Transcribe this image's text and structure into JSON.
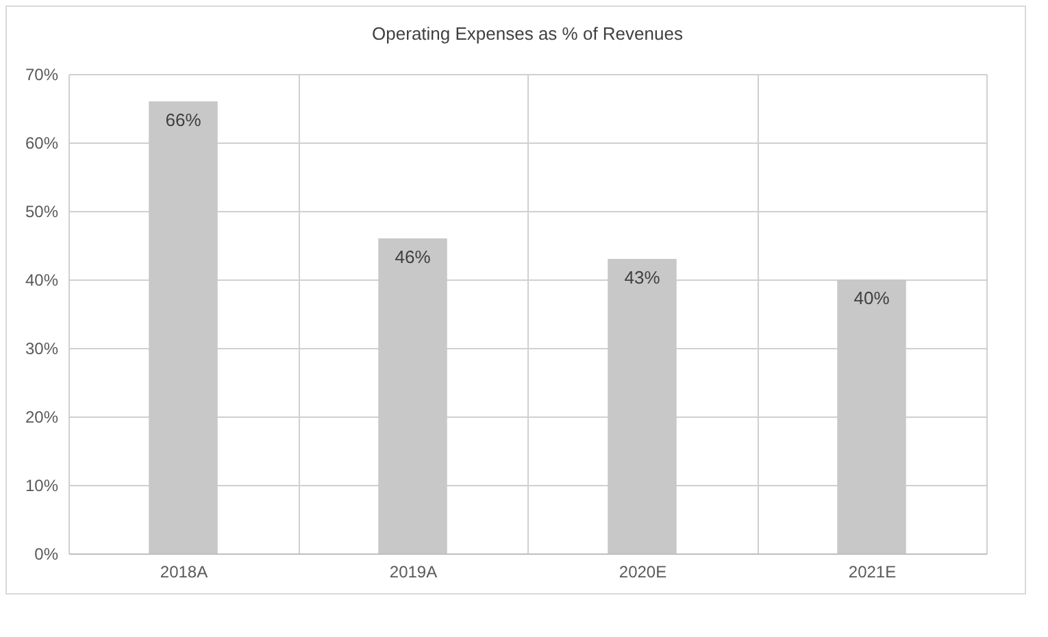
{
  "chart_data": {
    "type": "bar",
    "title": "Operating Expenses as % of Revenues",
    "categories": [
      "2018A",
      "2019A",
      "2020E",
      "2021E"
    ],
    "values": [
      66,
      46,
      43,
      40
    ],
    "value_labels": [
      "66%",
      "46%",
      "43%",
      "40%"
    ],
    "color": "#c8c8c8",
    "ylim": [
      0,
      70
    ],
    "yticks": [
      {
        "value": 0,
        "label": "0%"
      },
      {
        "value": 10,
        "label": "10%"
      },
      {
        "value": 20,
        "label": "20%"
      },
      {
        "value": 30,
        "label": "30%"
      },
      {
        "value": 40,
        "label": "40%"
      },
      {
        "value": 50,
        "label": "50%"
      },
      {
        "value": 60,
        "label": "60%"
      },
      {
        "value": 70,
        "label": "70%"
      }
    ],
    "grid": true
  }
}
